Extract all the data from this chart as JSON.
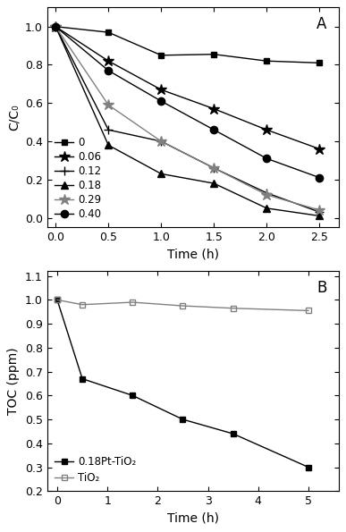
{
  "panel_A": {
    "time": [
      0,
      0.5,
      1.0,
      1.5,
      2.0,
      2.5
    ],
    "series": [
      {
        "label": "0",
        "marker": "s",
        "color": "black",
        "fillstyle": "full",
        "ms": 5,
        "values": [
          1.0,
          0.97,
          0.85,
          0.855,
          0.82,
          0.81
        ]
      },
      {
        "label": "0.06",
        "marker": "*",
        "color": "black",
        "fillstyle": "full",
        "ms": 9,
        "values": [
          1.0,
          0.82,
          0.67,
          0.57,
          0.46,
          0.36
        ]
      },
      {
        "label": "0.12",
        "marker": "+",
        "color": "black",
        "fillstyle": "full",
        "ms": 7,
        "values": [
          1.0,
          0.46,
          0.4,
          0.26,
          0.13,
          0.03
        ]
      },
      {
        "label": "0.18",
        "marker": "^",
        "color": "black",
        "fillstyle": "full",
        "ms": 6,
        "values": [
          1.0,
          0.38,
          0.23,
          0.18,
          0.05,
          0.01
        ]
      },
      {
        "label": "0.29",
        "marker": "*",
        "color": "gray",
        "fillstyle": "full",
        "ms": 9,
        "values": [
          1.0,
          0.59,
          0.4,
          0.26,
          0.12,
          0.04
        ]
      },
      {
        "label": "0.40",
        "marker": "o",
        "color": "black",
        "fillstyle": "full",
        "ms": 6,
        "values": [
          1.0,
          0.77,
          0.61,
          0.46,
          0.31,
          0.21
        ]
      }
    ],
    "xlabel": "Time (h)",
    "ylabel": "C/C₀",
    "ylim": [
      -0.05,
      1.1
    ],
    "xlim": [
      -0.08,
      2.68
    ],
    "panel_label": "A",
    "xticks": [
      0.0,
      0.5,
      1.0,
      1.5,
      2.0,
      2.5
    ],
    "yticks": [
      0.0,
      0.2,
      0.4,
      0.6,
      0.8,
      1.0
    ]
  },
  "panel_B": {
    "series": [
      {
        "label": "0.18Pt-TiO₂",
        "marker": "s",
        "color": "black",
        "fillstyle": "full",
        "ms": 5,
        "time": [
          0,
          0.5,
          1.5,
          2.5,
          3.5,
          5.0
        ],
        "values": [
          1.0,
          0.67,
          0.6,
          0.5,
          0.44,
          0.3
        ]
      },
      {
        "label": "TiO₂",
        "marker": "s",
        "color": "gray",
        "fillstyle": "none",
        "ms": 5,
        "time": [
          0,
          0.5,
          1.5,
          2.5,
          3.5,
          5.0
        ],
        "values": [
          1.0,
          0.98,
          0.99,
          0.975,
          0.965,
          0.955
        ]
      }
    ],
    "xlabel": "Time (h)",
    "ylabel": "TOC (ppm)",
    "ylim": [
      0.2,
      1.12
    ],
    "xlim": [
      -0.2,
      5.6
    ],
    "panel_label": "B",
    "xticks": [
      0,
      1,
      2,
      3,
      4,
      5
    ],
    "yticks": [
      0.2,
      0.3,
      0.4,
      0.5,
      0.6,
      0.7,
      0.8,
      0.9,
      1.0,
      1.1
    ]
  },
  "linewidth": 1.0,
  "figsize": [
    3.87,
    5.95
  ],
  "dpi": 100
}
